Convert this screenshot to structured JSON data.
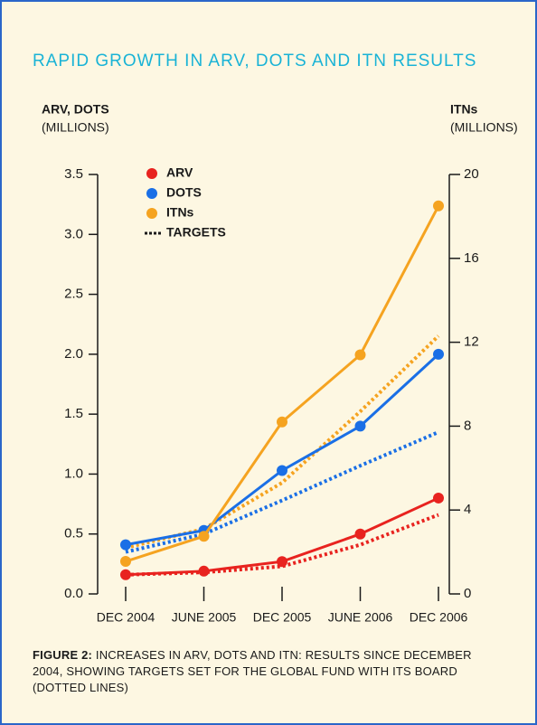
{
  "chart_data": {
    "type": "line",
    "title": "RAPID GROWTH IN ARV, DOTS AND ITN RESULTS",
    "ylabel": "ARV, DOTS",
    "ylabel_unit": "(MILLIONS)",
    "y2label": "ITNs",
    "y2label_unit": "(MILLIONS)",
    "categories": [
      "DEC 2004",
      "JUNE 2005",
      "DEC 2005",
      "JUNE 2006",
      "DEC 2006"
    ],
    "series": [
      {
        "name": "ARV",
        "color": "#e8231f",
        "values": [
          0.16,
          0.19,
          0.27,
          0.5,
          0.8
        ],
        "targets": [
          0.16,
          0.18,
          0.23,
          0.41,
          0.66
        ]
      },
      {
        "name": "DOTS",
        "color": "#1a6fe6",
        "values": [
          0.41,
          0.53,
          1.03,
          1.4,
          2.0
        ],
        "targets": [
          0.35,
          0.5,
          0.78,
          1.07,
          1.35
        ]
      },
      {
        "name": "ITNs",
        "color": "#f5a320",
        "axis": "y2",
        "values": [
          1.55,
          2.75,
          8.2,
          11.4,
          18.5
        ],
        "targets": [
          2.2,
          3.1,
          5.3,
          8.7,
          12.3
        ]
      }
    ],
    "legend_targets": "TARGETS",
    "targets_color": "#1a1a1a",
    "ylim": [
      0,
      3.5
    ],
    "yticks": [
      {
        "value": 0,
        "label": "0.0"
      },
      0.5,
      {
        "value": 1,
        "label": "1.0"
      },
      1.5,
      {
        "value": 2,
        "label": "2.0"
      },
      2.5,
      {
        "value": 3,
        "label": "3.0"
      },
      3.5
    ],
    "y2lim": [
      0,
      20
    ],
    "y2ticks": [
      0,
      4,
      8,
      12,
      16,
      20
    ],
    "caption_label": "FIGURE 2:",
    "caption": "INCREASES IN ARV, DOTS AND ITN: RESULTS SINCE DECEMBER 2004, SHOWING TARGETS SET FOR THE GLOBAL FUND WITH ITS BOARD (DOTTED LINES)"
  }
}
